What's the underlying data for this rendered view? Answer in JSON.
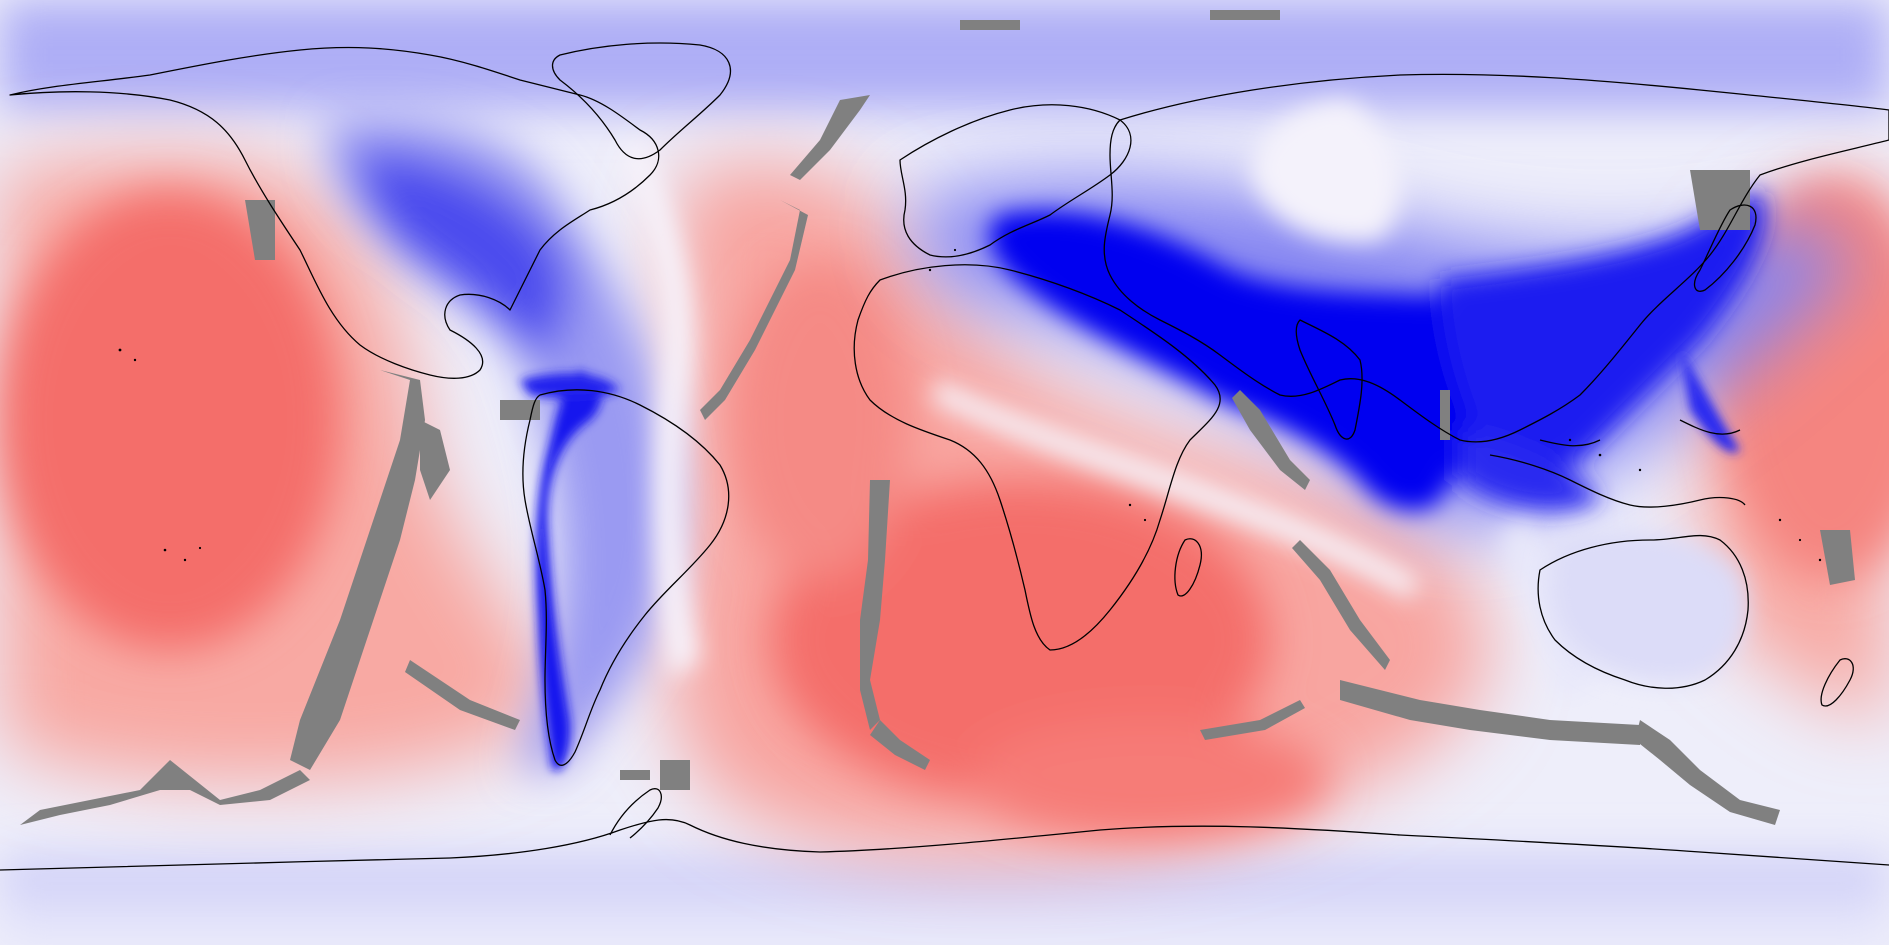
{
  "map": {
    "projection": "equirectangular",
    "colors": {
      "deep_blue": "#0000f0",
      "mid_blue": "#5a5af0",
      "light_blue": "#c8c8f6",
      "near_white": "#f6f4fb",
      "light_red": "#fcc6c2",
      "mid_red": "#f99a95",
      "strong_red": "#f46e6a",
      "missing_data_gray": "#808080",
      "coastline": "#000000"
    }
  }
}
